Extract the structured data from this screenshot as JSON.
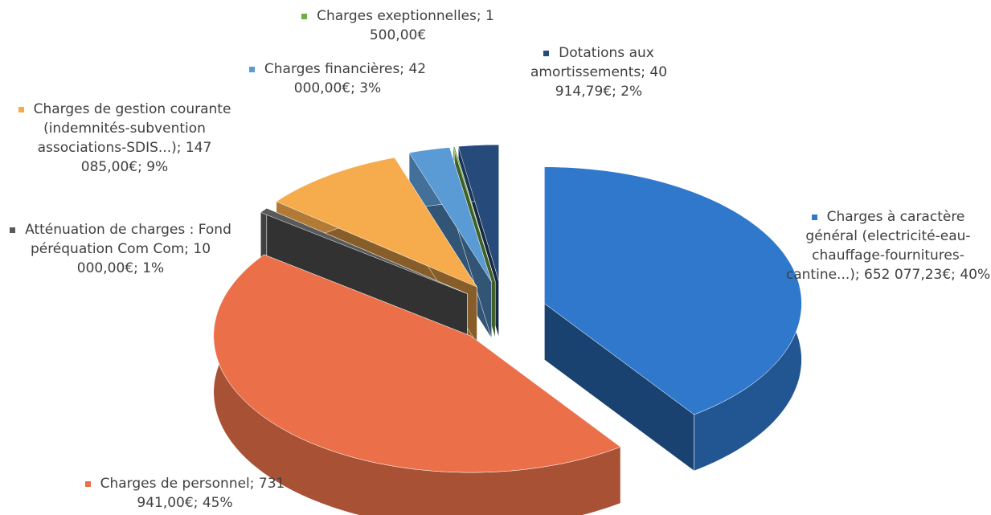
{
  "chart_data": {
    "type": "pie3d",
    "categories": [
      "Charges à caractère général (electricité-eau-chauffage-fournitures-cantine...);",
      "Charges de personnel;",
      "Atténuation de charges : Fond péréquation Com Com;",
      "Charges de gestion courante (indemnités-subvention associations-SDIS...);",
      "Charges financières;",
      "Charges exeptionnelles;",
      "Dotations aux amortissements;"
    ],
    "values": [
      652077.23,
      731941.0,
      10000.0,
      147085.0,
      42000.0,
      1500.0,
      40914.79
    ],
    "value_labels": [
      "652 077,23€; 40%",
      "731 941,00€; 45%",
      "10 000,00€; 1%",
      "147 085,00€; 9%",
      "42 000,00€; 3%",
      "1 500,00€",
      "40 914,79€; 2%"
    ],
    "colors": [
      "#2f78cc",
      "#eb7049",
      "#5a5a5a",
      "#f6ab4d",
      "#5b9bd5",
      "#70ad47",
      "#264a7a"
    ]
  }
}
